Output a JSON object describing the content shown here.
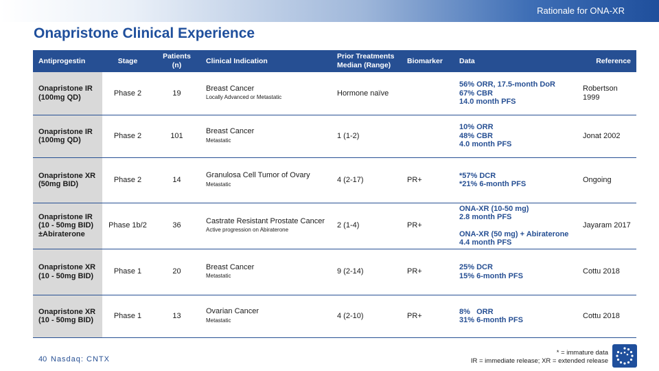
{
  "header": {
    "section_label": "Rationale for ONA-XR",
    "title": "Onapristone Clinical Experience"
  },
  "table": {
    "columns": {
      "antiprogestin": "Antiprogestin",
      "stage": "Stage",
      "patients": "Patients (n)",
      "indication": "Clinical Indication",
      "prior_line1": "Prior Treatments",
      "prior_line2": "Median (Range)",
      "biomarker": "Biomarker",
      "data": "Data",
      "reference": "Reference"
    },
    "rows": [
      {
        "drug_line1": "Onapristone IR",
        "drug_line2": "(100mg QD)",
        "drug_line3": "",
        "stage": "Phase 2",
        "patients": "19",
        "indication": "Breast Cancer",
        "indication_detail": "Locally Advanced or Metastatic",
        "prior": "Hormone naïve",
        "biomarker": "",
        "data": [
          "56% ORR, 17.5-month DoR",
          "67% CBR",
          "14.0 month PFS"
        ],
        "ref_line1": "Robertson",
        "ref_line2": "1999"
      },
      {
        "drug_line1": "Onapristone IR",
        "drug_line2": "(100mg QD)",
        "drug_line3": "",
        "stage": "Phase 2",
        "patients": "101",
        "indication": "Breast Cancer",
        "indication_detail": "Metastatic",
        "prior": "1 (1-2)",
        "biomarker": "",
        "data": [
          "10% ORR",
          "48% CBR",
          "4.0 month PFS"
        ],
        "ref_line1": "Jonat 2002",
        "ref_line2": ""
      },
      {
        "drug_line1": "Onapristone XR",
        "drug_line2": "(50mg BID)",
        "drug_line3": "",
        "stage": "Phase 2",
        "patients": "14",
        "indication": "Granulosa Cell Tumor of Ovary",
        "indication_detail": "Metastatic",
        "prior": "4 (2-17)",
        "biomarker": "PR+",
        "data": [
          "*57% DCR",
          "*21% 6-month PFS"
        ],
        "ref_line1": "Ongoing",
        "ref_line2": ""
      },
      {
        "drug_line1": "Onapristone IR",
        "drug_line2": "(10 - 50mg BID)",
        "drug_line3": "±Abiraterone",
        "stage": "Phase 1b/2",
        "patients": "36",
        "indication": "Castrate Resistant Prostate Cancer",
        "indication_detail": "Active progression on Abiraterone",
        "prior": "2 (1-4)",
        "biomarker": "PR+",
        "data": [
          "ONA-XR (10-50 mg)",
          "2.8 month PFS"
        ],
        "data_b": [
          "ONA-XR (50 mg) + Abiraterone",
          "4.4 month PFS"
        ],
        "ref_line1": "Jayaram 2017",
        "ref_line2": ""
      },
      {
        "drug_line1": "Onapristone XR",
        "drug_line2": "(10 - 50mg BID)",
        "drug_line3": "",
        "stage": "Phase 1",
        "patients": "20",
        "indication": "Breast Cancer",
        "indication_detail": "Metastatic",
        "prior": "9 (2-14)",
        "biomarker": "PR+",
        "data": [
          "25% DCR",
          "15% 6-month PFS"
        ],
        "ref_line1": "Cottu 2018",
        "ref_line2": ""
      },
      {
        "drug_line1": "Onapristone XR",
        "drug_line2": "(10 - 50mg BID)",
        "drug_line3": "",
        "stage": "Phase 1",
        "patients": "13",
        "indication": "Ovarian Cancer",
        "indication_detail": "Metastatic",
        "prior": "4 (2-10)",
        "biomarker": "PR+",
        "data": [
          "8%   ORR",
          "31% 6-month PFS"
        ],
        "ref_line1": "Cottu 2018",
        "ref_line2": ""
      }
    ]
  },
  "footer": {
    "note1": "* = immature data",
    "note2": "IR = immediate release; XR = extended release",
    "page_number": "40",
    "ticker": "Nasdaq: CNTX"
  },
  "logo": {
    "icon": "company-logo-icon",
    "color": "#1f4f9c"
  },
  "colors": {
    "accent": "#264f93",
    "title": "#1f4f9c",
    "drug_cell": "#d9d9d9"
  }
}
